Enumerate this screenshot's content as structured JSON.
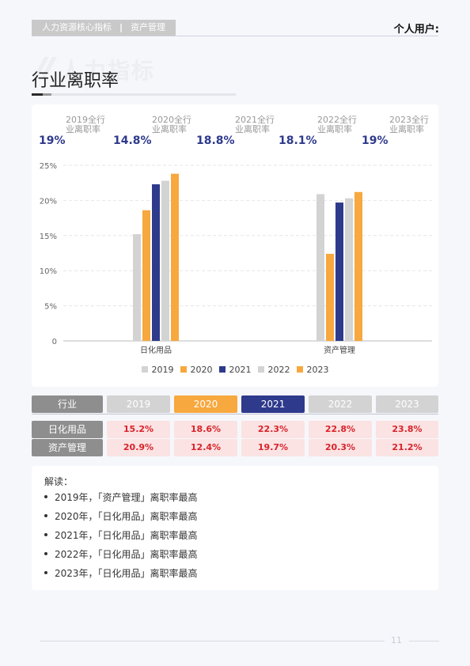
{
  "header": {
    "tag_left": "人力资源核心指标",
    "tag_sep": "|",
    "tag_right": "资产管理",
    "user": "个人用户:"
  },
  "watermark": "人力指标",
  "title": "行业离职率",
  "kpis": [
    {
      "value": "19%",
      "label": "2019全行业离职率"
    },
    {
      "value": "14.8%",
      "label": "2020全行业离职率"
    },
    {
      "value": "18.8%",
      "label": "2021全行业离职率"
    },
    {
      "value": "18.1%",
      "label": "2022全行业离职率"
    },
    {
      "value": "19%",
      "label": "2023全行业离职率"
    }
  ],
  "chart_data": {
    "type": "bar",
    "categories": [
      "日化用品",
      "资产管理"
    ],
    "series": [
      {
        "name": "2019",
        "values": [
          15.2,
          20.9
        ],
        "color": "#d3d3d3"
      },
      {
        "name": "2020",
        "values": [
          18.6,
          12.4
        ],
        "color": "#f7a83e"
      },
      {
        "name": "2021",
        "values": [
          22.3,
          19.7
        ],
        "color": "#2e3a8c"
      },
      {
        "name": "2022",
        "values": [
          22.8,
          20.3
        ],
        "color": "#d3d3d3"
      },
      {
        "name": "2023",
        "values": [
          23.8,
          21.2
        ],
        "color": "#f7a83e"
      }
    ],
    "yticks": [
      "0",
      "5%",
      "10%",
      "15%",
      "20%",
      "25%"
    ],
    "ylim": [
      0,
      25
    ],
    "grid": true,
    "legend": "bottom-center"
  },
  "table": {
    "header": [
      {
        "label": "行业",
        "color": "#8e8e8e"
      },
      {
        "label": "2019",
        "color": "#d3d3d3"
      },
      {
        "label": "2020",
        "color": "#f7a83e"
      },
      {
        "label": "2021",
        "color": "#2e3a8c"
      },
      {
        "label": "2022",
        "color": "#d3d3d3"
      },
      {
        "label": "2023",
        "color": "#d3d3d3"
      }
    ],
    "rows": [
      {
        "label": "日化用品",
        "values": [
          "15.2%",
          "18.6%",
          "22.3%",
          "22.8%",
          "23.8%"
        ]
      },
      {
        "label": "资产管理",
        "values": [
          "20.9%",
          "12.4%",
          "19.7%",
          "20.3%",
          "21.2%"
        ]
      }
    ]
  },
  "notes": {
    "title": "解读：",
    "items": [
      "2019年，「资产管理」离职率最高",
      "2020年，「日化用品」离职率最高",
      "2021年，「日化用品」离职率最高",
      "2022年，「日化用品」离职率最高",
      "2023年，「日化用品」离职率最高"
    ]
  },
  "page_number": "11"
}
